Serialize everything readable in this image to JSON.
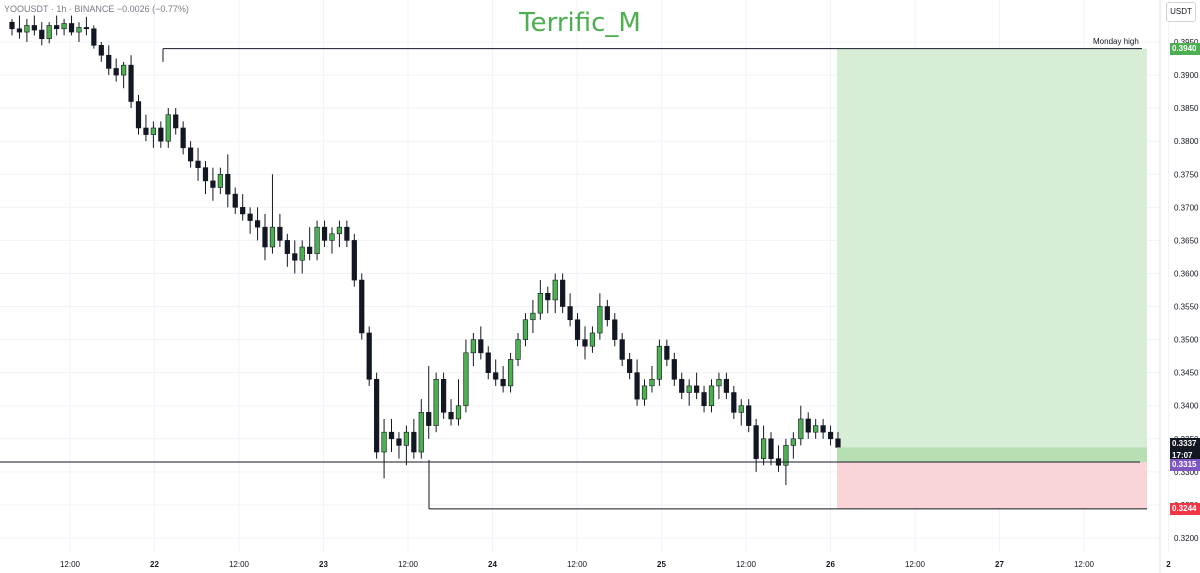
{
  "header": {
    "watermark": "Terrific_M",
    "symbol_text": "YOOUSDT · 1h · BINANCE  −0.0026 (−0.77%)",
    "currency_button": "USDT"
  },
  "annotations": {
    "monday_high_label": "Monday high"
  },
  "price_tags": {
    "target": "0.3940",
    "current": "0.3337",
    "countdown": "17:07",
    "entry": "0.3315",
    "stop": "0.3244"
  },
  "colors": {
    "up": "#4caf50",
    "down": "#131722",
    "profit_zone": "#d8edd6",
    "loss_zone": "#f9d5d8",
    "watermark": "#4caf50",
    "target_tag": "#4caf50",
    "current_tag": "#131722",
    "entry_tag": "#7e57c2",
    "stop_tag": "#f23645"
  },
  "chart_data": {
    "type": "candlestick",
    "timeframe": "1h",
    "ylim": [
      0.32,
      0.395
    ],
    "y_ticks": [
      "0.3950",
      "0.3900",
      "0.3850",
      "0.3800",
      "0.3750",
      "0.3700",
      "0.3650",
      "0.3600",
      "0.3550",
      "0.3500",
      "0.3450",
      "0.3400",
      "0.3350",
      "0.3300",
      "0.3250",
      "0.3200"
    ],
    "x_ticks": [
      "12:00",
      "22",
      "12:00",
      "23",
      "12:00",
      "24",
      "12:00",
      "25",
      "12:00",
      "26",
      "12:00",
      "27",
      "12:00",
      "2"
    ],
    "levels": [
      {
        "name": "Monday high",
        "price": 0.394
      },
      {
        "name": "entry",
        "price": 0.3315
      },
      {
        "name": "stop",
        "price": 0.3244
      }
    ],
    "position": {
      "type": "long",
      "entry": 0.3315,
      "target": 0.394,
      "stop": 0.3244
    },
    "candles": [
      [
        0.398,
        0.3985,
        0.396,
        0.397
      ],
      [
        0.397,
        0.399,
        0.3955,
        0.3965
      ],
      [
        0.3965,
        0.3985,
        0.395,
        0.3975
      ],
      [
        0.3975,
        0.399,
        0.396,
        0.3968
      ],
      [
        0.3968,
        0.398,
        0.3945,
        0.3955
      ],
      [
        0.3955,
        0.398,
        0.3948,
        0.3975
      ],
      [
        0.3975,
        0.399,
        0.396,
        0.397
      ],
      [
        0.397,
        0.3985,
        0.396,
        0.3978
      ],
      [
        0.3978,
        0.399,
        0.396,
        0.3965
      ],
      [
        0.3965,
        0.398,
        0.395,
        0.3972
      ],
      [
        0.3972,
        0.3988,
        0.396,
        0.397
      ],
      [
        0.397,
        0.3975,
        0.394,
        0.3945
      ],
      [
        0.3945,
        0.395,
        0.392,
        0.393
      ],
      [
        0.393,
        0.3945,
        0.39,
        0.391
      ],
      [
        0.391,
        0.3925,
        0.389,
        0.39
      ],
      [
        0.39,
        0.392,
        0.388,
        0.3915
      ],
      [
        0.3915,
        0.393,
        0.385,
        0.386
      ],
      [
        0.386,
        0.387,
        0.381,
        0.382
      ],
      [
        0.382,
        0.384,
        0.38,
        0.381
      ],
      [
        0.381,
        0.383,
        0.379,
        0.382
      ],
      [
        0.382,
        0.383,
        0.379,
        0.38
      ],
      [
        0.38,
        0.385,
        0.379,
        0.384
      ],
      [
        0.384,
        0.385,
        0.381,
        0.382
      ],
      [
        0.382,
        0.383,
        0.378,
        0.379
      ],
      [
        0.379,
        0.38,
        0.376,
        0.377
      ],
      [
        0.377,
        0.379,
        0.374,
        0.376
      ],
      [
        0.376,
        0.377,
        0.372,
        0.374
      ],
      [
        0.374,
        0.376,
        0.371,
        0.373
      ],
      [
        0.373,
        0.376,
        0.372,
        0.375
      ],
      [
        0.375,
        0.378,
        0.37,
        0.372
      ],
      [
        0.372,
        0.373,
        0.369,
        0.37
      ],
      [
        0.37,
        0.372,
        0.368,
        0.369
      ],
      [
        0.369,
        0.37,
        0.366,
        0.368
      ],
      [
        0.368,
        0.37,
        0.365,
        0.367
      ],
      [
        0.367,
        0.369,
        0.362,
        0.364
      ],
      [
        0.364,
        0.375,
        0.363,
        0.367
      ],
      [
        0.367,
        0.369,
        0.364,
        0.365
      ],
      [
        0.365,
        0.366,
        0.361,
        0.363
      ],
      [
        0.363,
        0.365,
        0.36,
        0.362
      ],
      [
        0.362,
        0.365,
        0.36,
        0.364
      ],
      [
        0.364,
        0.367,
        0.362,
        0.363
      ],
      [
        0.363,
        0.368,
        0.362,
        0.367
      ],
      [
        0.367,
        0.368,
        0.364,
        0.365
      ],
      [
        0.365,
        0.367,
        0.363,
        0.366
      ],
      [
        0.366,
        0.368,
        0.364,
        0.367
      ],
      [
        0.367,
        0.368,
        0.364,
        0.365
      ],
      [
        0.365,
        0.366,
        0.358,
        0.359
      ],
      [
        0.359,
        0.36,
        0.35,
        0.351
      ],
      [
        0.351,
        0.352,
        0.343,
        0.344
      ],
      [
        0.344,
        0.345,
        0.332,
        0.333
      ],
      [
        0.333,
        0.338,
        0.329,
        0.336
      ],
      [
        0.336,
        0.338,
        0.333,
        0.335
      ],
      [
        0.335,
        0.336,
        0.332,
        0.334
      ],
      [
        0.334,
        0.337,
        0.331,
        0.336
      ],
      [
        0.336,
        0.338,
        0.332,
        0.333
      ],
      [
        0.333,
        0.341,
        0.332,
        0.339
      ],
      [
        0.339,
        0.346,
        0.335,
        0.337
      ],
      [
        0.337,
        0.345,
        0.336,
        0.344
      ],
      [
        0.344,
        0.345,
        0.338,
        0.339
      ],
      [
        0.339,
        0.341,
        0.337,
        0.338
      ],
      [
        0.338,
        0.344,
        0.337,
        0.34
      ],
      [
        0.34,
        0.35,
        0.339,
        0.348
      ],
      [
        0.348,
        0.351,
        0.346,
        0.35
      ],
      [
        0.35,
        0.352,
        0.347,
        0.348
      ],
      [
        0.348,
        0.349,
        0.344,
        0.345
      ],
      [
        0.345,
        0.347,
        0.343,
        0.344
      ],
      [
        0.344,
        0.346,
        0.342,
        0.343
      ],
      [
        0.343,
        0.348,
        0.342,
        0.347
      ],
      [
        0.347,
        0.351,
        0.346,
        0.35
      ],
      [
        0.35,
        0.354,
        0.349,
        0.353
      ],
      [
        0.353,
        0.356,
        0.351,
        0.354
      ],
      [
        0.354,
        0.359,
        0.353,
        0.357
      ],
      [
        0.357,
        0.358,
        0.354,
        0.356
      ],
      [
        0.356,
        0.36,
        0.354,
        0.359
      ],
      [
        0.359,
        0.36,
        0.354,
        0.355
      ],
      [
        0.355,
        0.357,
        0.352,
        0.353
      ],
      [
        0.353,
        0.354,
        0.349,
        0.35
      ],
      [
        0.35,
        0.352,
        0.347,
        0.349
      ],
      [
        0.349,
        0.352,
        0.348,
        0.351
      ],
      [
        0.351,
        0.357,
        0.35,
        0.355
      ],
      [
        0.355,
        0.356,
        0.352,
        0.353
      ],
      [
        0.353,
        0.354,
        0.349,
        0.35
      ],
      [
        0.35,
        0.351,
        0.346,
        0.347
      ],
      [
        0.347,
        0.348,
        0.344,
        0.345
      ],
      [
        0.345,
        0.347,
        0.34,
        0.341
      ],
      [
        0.341,
        0.344,
        0.34,
        0.343
      ],
      [
        0.343,
        0.346,
        0.342,
        0.344
      ],
      [
        0.344,
        0.35,
        0.343,
        0.349
      ],
      [
        0.349,
        0.35,
        0.346,
        0.347
      ],
      [
        0.347,
        0.348,
        0.343,
        0.344
      ],
      [
        0.344,
        0.345,
        0.341,
        0.342
      ],
      [
        0.342,
        0.344,
        0.34,
        0.343
      ],
      [
        0.343,
        0.345,
        0.341,
        0.342
      ],
      [
        0.342,
        0.343,
        0.339,
        0.34
      ],
      [
        0.34,
        0.344,
        0.339,
        0.343
      ],
      [
        0.343,
        0.345,
        0.341,
        0.344
      ],
      [
        0.344,
        0.345,
        0.341,
        0.342
      ],
      [
        0.342,
        0.343,
        0.338,
        0.339
      ],
      [
        0.339,
        0.341,
        0.337,
        0.34
      ],
      [
        0.34,
        0.341,
        0.336,
        0.337
      ],
      [
        0.337,
        0.338,
        0.33,
        0.332
      ],
      [
        0.332,
        0.337,
        0.331,
        0.335
      ],
      [
        0.335,
        0.336,
        0.331,
        0.332
      ],
      [
        0.332,
        0.334,
        0.33,
        0.331
      ],
      [
        0.331,
        0.335,
        0.328,
        0.334
      ],
      [
        0.334,
        0.336,
        0.332,
        0.335
      ],
      [
        0.335,
        0.34,
        0.334,
        0.338
      ],
      [
        0.338,
        0.339,
        0.335,
        0.336
      ],
      [
        0.336,
        0.338,
        0.335,
        0.337
      ],
      [
        0.337,
        0.338,
        0.335,
        0.336
      ],
      [
        0.336,
        0.337,
        0.334,
        0.335
      ],
      [
        0.335,
        0.336,
        0.333,
        0.3337
      ]
    ]
  }
}
